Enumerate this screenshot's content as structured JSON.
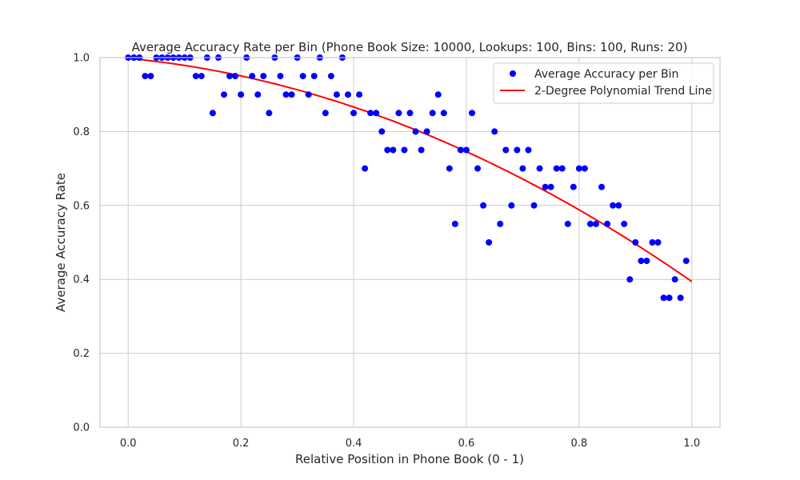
{
  "chart_data": {
    "type": "scatter",
    "title": "Average Accuracy Rate per Bin (Phone Book Size: 10000, Lookups: 100, Bins: 100, Runs: 20)",
    "xlabel": "Relative Position in Phone Book (0 - 1)",
    "ylabel": "Average Accuracy Rate",
    "xlim": [
      -0.05,
      1.05
    ],
    "ylim": [
      0.0,
      1.0
    ],
    "xticks": [
      "0.0",
      "0.2",
      "0.4",
      "0.6",
      "0.8",
      "1.0"
    ],
    "yticks": [
      "0.0",
      "0.2",
      "0.4",
      "0.6",
      "0.8",
      "1.0"
    ],
    "grid": true,
    "legend_position": "top-right",
    "legend": {
      "scatter_label": "Average Accuracy per Bin",
      "line_label": "2-Degree Polynomial Trend Line"
    },
    "colors": {
      "points": "#0000ff",
      "trend": "#ff0000",
      "grid": "#cccccc",
      "frame": "#cccccc"
    },
    "series": [
      {
        "name": "Average Accuracy per Bin",
        "kind": "scatter",
        "x": [
          0.0,
          0.01,
          0.02,
          0.03,
          0.04,
          0.05,
          0.06,
          0.07,
          0.08,
          0.09,
          0.1,
          0.11,
          0.12,
          0.13,
          0.14,
          0.15,
          0.16,
          0.17,
          0.18,
          0.19,
          0.2,
          0.21,
          0.22,
          0.23,
          0.24,
          0.25,
          0.26,
          0.27,
          0.28,
          0.29,
          0.3,
          0.31,
          0.32,
          0.33,
          0.34,
          0.35,
          0.36,
          0.37,
          0.38,
          0.39,
          0.4,
          0.41,
          0.42,
          0.43,
          0.44,
          0.45,
          0.46,
          0.47,
          0.48,
          0.49,
          0.5,
          0.51,
          0.52,
          0.53,
          0.54,
          0.55,
          0.56,
          0.57,
          0.58,
          0.59,
          0.6,
          0.61,
          0.62,
          0.63,
          0.64,
          0.65,
          0.66,
          0.67,
          0.68,
          0.69,
          0.7,
          0.71,
          0.72,
          0.73,
          0.74,
          0.75,
          0.76,
          0.77,
          0.78,
          0.79,
          0.8,
          0.81,
          0.82,
          0.83,
          0.84,
          0.85,
          0.86,
          0.87,
          0.88,
          0.89,
          0.9,
          0.91,
          0.92,
          0.93,
          0.94,
          0.95,
          0.96,
          0.97,
          0.98,
          0.99
        ],
        "y": [
          1.0,
          1.0,
          1.0,
          0.95,
          0.95,
          1.0,
          1.0,
          1.0,
          1.0,
          1.0,
          1.0,
          1.0,
          0.95,
          0.95,
          1.0,
          0.85,
          1.0,
          0.9,
          0.95,
          0.95,
          0.9,
          1.0,
          0.95,
          0.9,
          0.95,
          0.85,
          1.0,
          0.95,
          0.9,
          0.9,
          1.0,
          0.95,
          0.9,
          0.95,
          1.0,
          0.85,
          0.95,
          0.9,
          1.0,
          0.9,
          0.85,
          0.9,
          0.7,
          0.85,
          0.85,
          0.8,
          0.75,
          0.75,
          0.85,
          0.75,
          0.85,
          0.8,
          0.75,
          0.8,
          0.85,
          0.9,
          0.85,
          0.7,
          0.55,
          0.75,
          0.75,
          0.85,
          0.7,
          0.6,
          0.5,
          0.8,
          0.55,
          0.75,
          0.6,
          0.75,
          0.7,
          0.75,
          0.6,
          0.7,
          0.65,
          0.65,
          0.7,
          0.7,
          0.55,
          0.65,
          0.7,
          0.7,
          0.55,
          0.55,
          0.65,
          0.55,
          0.6,
          0.6,
          0.55,
          0.4,
          0.5,
          0.45,
          0.45,
          0.5,
          0.5,
          0.35,
          0.35,
          0.4,
          0.35,
          0.45
        ]
      },
      {
        "name": "2-Degree Polynomial Trend Line",
        "kind": "line",
        "polynomial": {
          "a": -0.458,
          "b": -0.146,
          "c": 0.998
        },
        "x_range": [
          0.0,
          1.0
        ]
      }
    ]
  }
}
